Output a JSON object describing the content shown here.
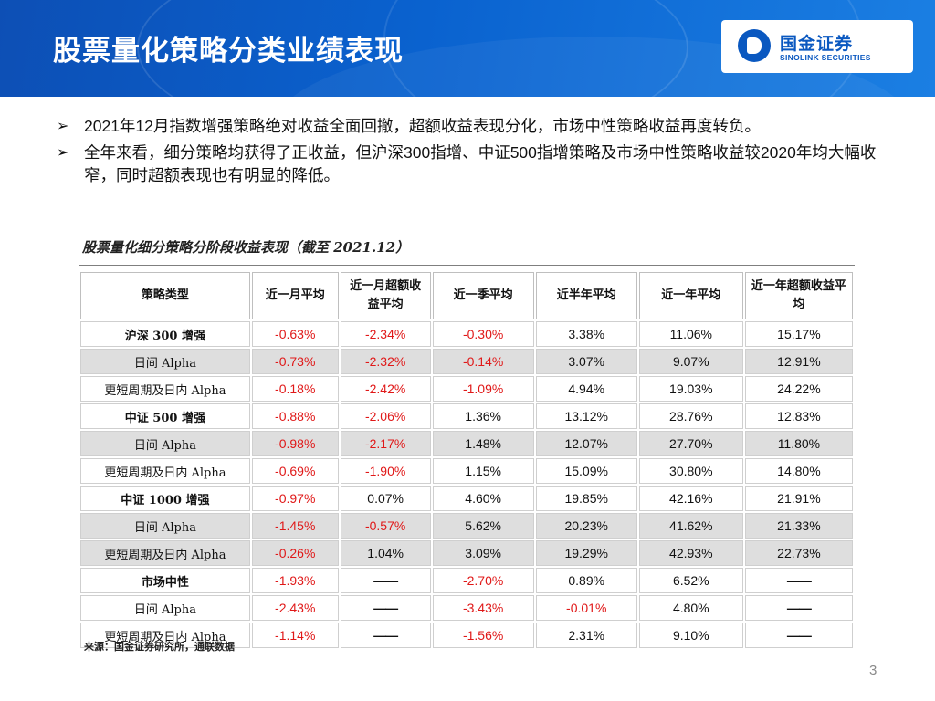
{
  "header": {
    "title": "股票量化策略分类业绩表现",
    "logo_cn": "国金证券",
    "logo_en": "SINOLINK SECURITIES"
  },
  "bullets": [
    "2021年12月指数增强策略绝对收益全面回撤，超额收益表现分化，市场中性策略收益再度转负。",
    "全年来看，细分策略均获得了正收益，但沪深300指增、中证500指增策略及市场中性策略收益较2020年均大幅收窄，同时超额表现也有明显的降低。"
  ],
  "table": {
    "caption": "股票量化细分策略分阶段收益表现（截至 2021.12）",
    "headers": [
      "策略类型",
      "近一月平均",
      "近一月超额收益平均",
      "近一季平均",
      "近半年平均",
      "近一年平均",
      "近一年超额收益平均"
    ],
    "rows": [
      {
        "label": "沪深 300 增强",
        "bold": true,
        "cells": [
          "-0.63%",
          "-2.34%",
          "-0.30%",
          "3.38%",
          "11.06%",
          "15.17%"
        ]
      },
      {
        "label": "日间 Alpha",
        "bold": false,
        "cells": [
          "-0.73%",
          "-2.32%",
          "-0.14%",
          "3.07%",
          "9.07%",
          "12.91%"
        ]
      },
      {
        "label": "更短周期及日内 Alpha",
        "bold": false,
        "cells": [
          "-0.18%",
          "-2.42%",
          "-1.09%",
          "4.94%",
          "19.03%",
          "24.22%"
        ]
      },
      {
        "label": "中证 500 增强",
        "bold": true,
        "cells": [
          "-0.88%",
          "-2.06%",
          "1.36%",
          "13.12%",
          "28.76%",
          "12.83%"
        ]
      },
      {
        "label": "日间 Alpha",
        "bold": false,
        "cells": [
          "-0.98%",
          "-2.17%",
          "1.48%",
          "12.07%",
          "27.70%",
          "11.80%"
        ]
      },
      {
        "label": "更短周期及日内 Alpha",
        "bold": false,
        "cells": [
          "-0.69%",
          "-1.90%",
          "1.15%",
          "15.09%",
          "30.80%",
          "14.80%"
        ]
      },
      {
        "label": "中证 1000 增强",
        "bold": true,
        "cells": [
          "-0.97%",
          "0.07%",
          "4.60%",
          "19.85%",
          "42.16%",
          "21.91%"
        ]
      },
      {
        "label": "日间 Alpha",
        "bold": false,
        "cells": [
          "-1.45%",
          "-0.57%",
          "5.62%",
          "20.23%",
          "41.62%",
          "21.33%"
        ]
      },
      {
        "label": "更短周期及日内 Alpha",
        "bold": false,
        "cells": [
          "-0.26%",
          "1.04%",
          "3.09%",
          "19.29%",
          "42.93%",
          "22.73%"
        ]
      },
      {
        "label": "市场中性",
        "bold": true,
        "cells": [
          "-1.93%",
          "——",
          "-2.70%",
          "0.89%",
          "6.52%",
          "——"
        ]
      },
      {
        "label": "日间 Alpha",
        "bold": false,
        "cells": [
          "-2.43%",
          "——",
          "-3.43%",
          "-0.01%",
          "4.80%",
          "——"
        ]
      },
      {
        "label": "更短周期及日内 Alpha",
        "bold": false,
        "cells": [
          "-1.14%",
          "——",
          "-1.56%",
          "2.31%",
          "9.10%",
          "——"
        ]
      }
    ],
    "row_shading": [
      "white",
      "gray",
      "white",
      "white",
      "gray",
      "white",
      "white",
      "gray",
      "gray",
      "white",
      "white",
      "white"
    ]
  },
  "source": "来源：国金证券研究所，通联数据",
  "page_number": "3",
  "colors": {
    "header_blue": "#0a62cf",
    "negative_red": "#e01818",
    "row_gray": "#dedede"
  }
}
